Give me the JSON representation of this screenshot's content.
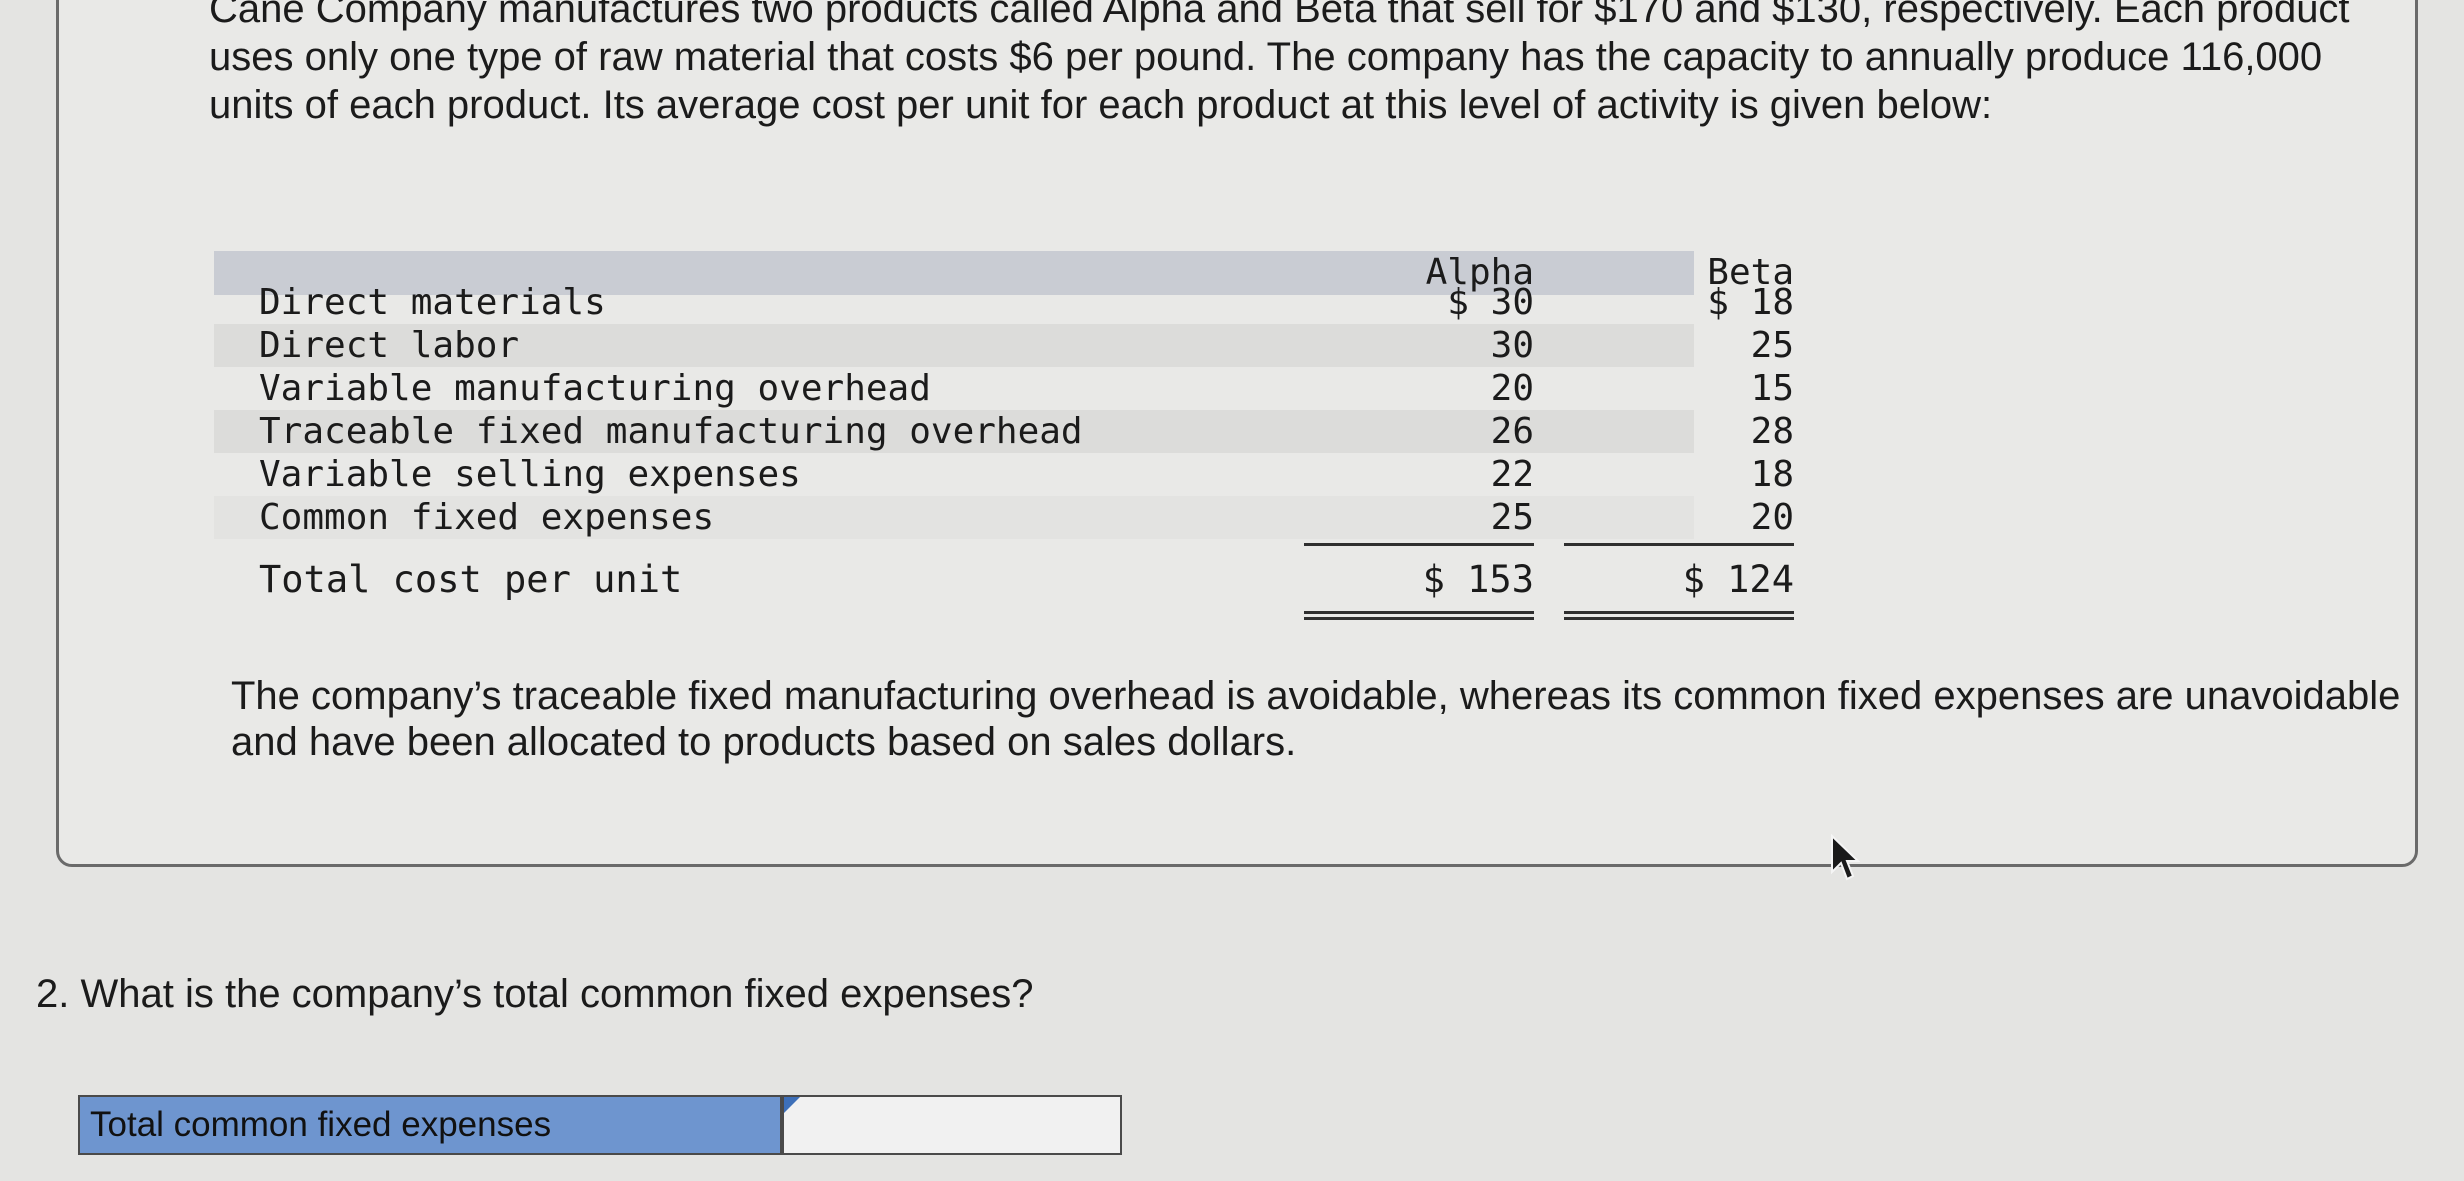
{
  "intro_text": "Cane Company manufactures two products called Alpha and Beta that sell for $170 and $130, respectively. Each product uses only one type of raw material that costs $6 per pound. The company has the capacity to annually produce 116,000 units of each product. Its average cost per unit for each product at this level of activity is given below:",
  "cost_table": {
    "columns": [
      "Alpha",
      "Beta"
    ],
    "rows": [
      {
        "label": "Direct materials",
        "alpha": "$ 30",
        "beta": "$ 18"
      },
      {
        "label": "Direct labor",
        "alpha": "30",
        "beta": "25"
      },
      {
        "label": "Variable manufacturing overhead",
        "alpha": "20",
        "beta": "15"
      },
      {
        "label": "Traceable fixed manufacturing overhead",
        "alpha": "26",
        "beta": "28"
      },
      {
        "label": "Variable selling expenses",
        "alpha": "22",
        "beta": "18"
      },
      {
        "label": "Common fixed expenses",
        "alpha": "25",
        "beta": "20"
      }
    ],
    "total": {
      "label": "Total cost per unit",
      "alpha": "$ 153",
      "beta": "$ 124"
    }
  },
  "note_text": "The company’s traceable fixed manufacturing overhead is avoidable, whereas its common fixed expenses are unavoidable and have been allocated to products based on sales dollars.",
  "question": {
    "number": "2.",
    "text": "What is the company’s total common fixed expenses?"
  },
  "answer": {
    "label": "Total common fixed expenses",
    "value": ""
  }
}
